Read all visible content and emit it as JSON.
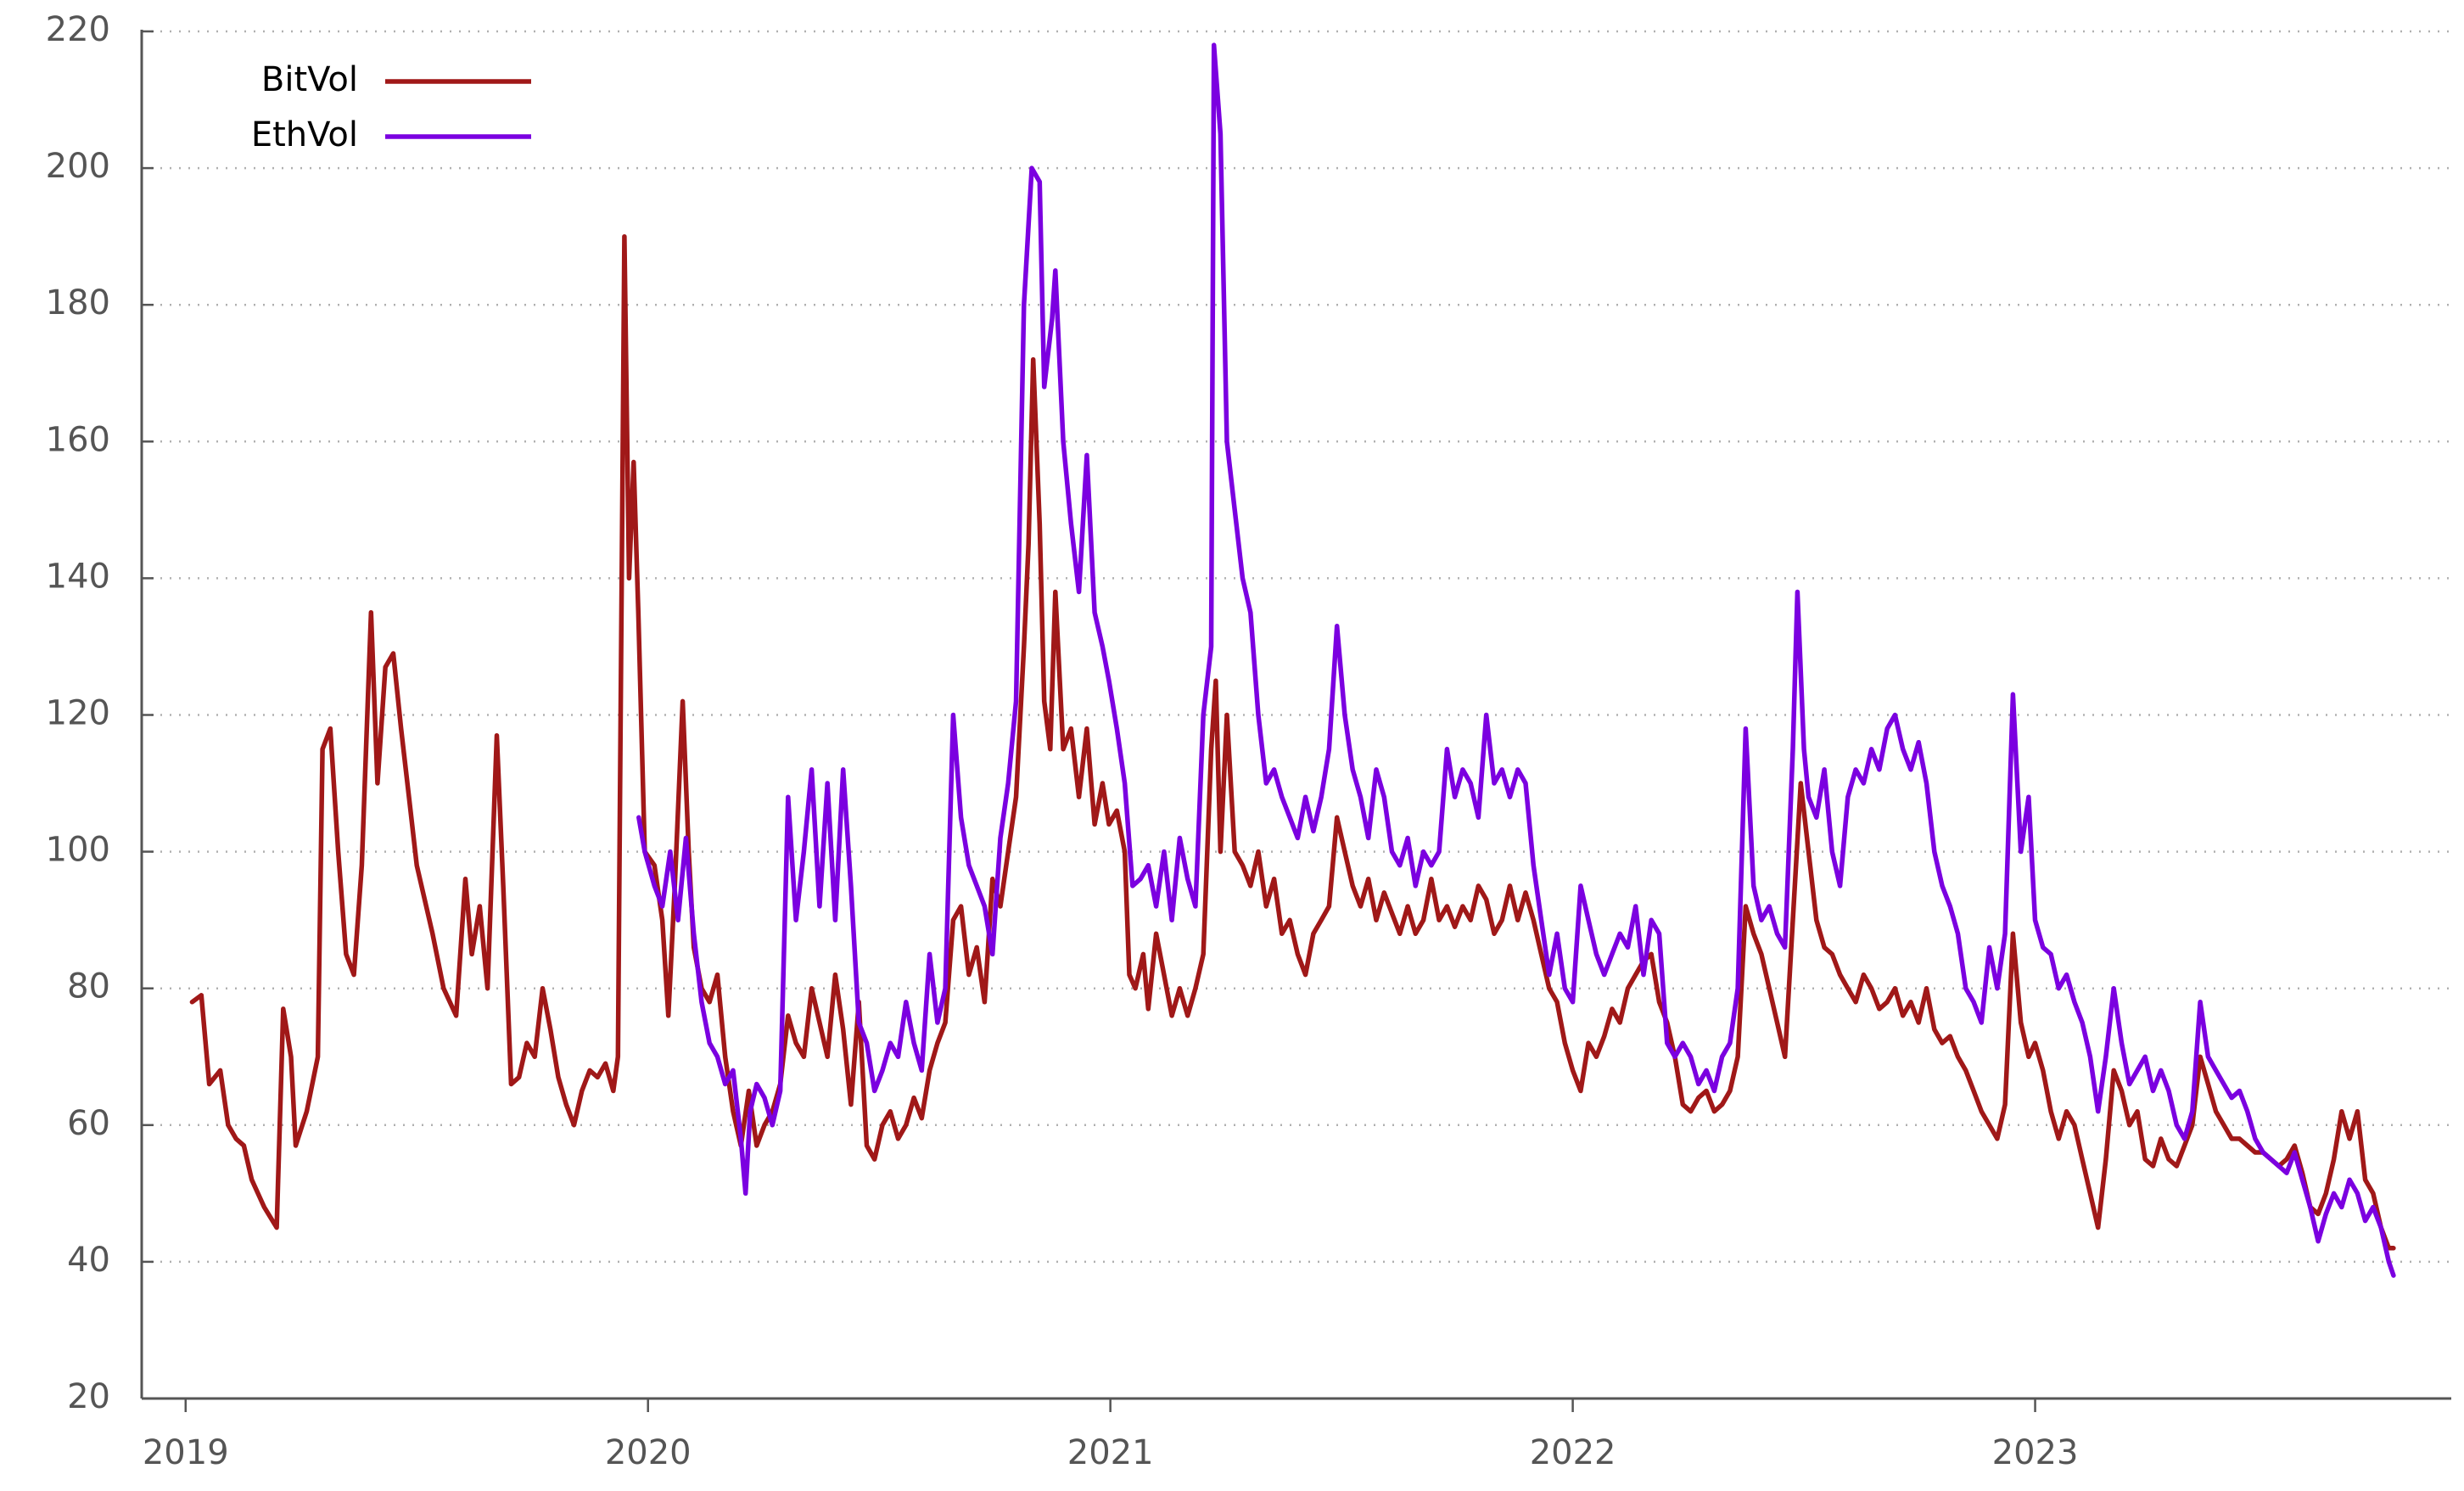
{
  "chart_data": {
    "type": "line",
    "legend": "upper left",
    "grid": true,
    "xlim": [
      2018.905,
      2023.9
    ],
    "xticks": [
      2019,
      2020,
      2021,
      2022,
      2023
    ],
    "ylim": [
      20,
      220
    ],
    "yticks": [
      20,
      40,
      60,
      80,
      100,
      120,
      140,
      160,
      180,
      200,
      220
    ],
    "series": [
      {
        "name": "BitVol",
        "color": "#a01818",
        "x": [
          2019.014,
          2019.034,
          2019.051,
          2019.075,
          2019.092,
          2019.109,
          2019.126,
          2019.143,
          2019.17,
          2019.197,
          2019.211,
          2019.228,
          2019.238,
          2019.262,
          2019.286,
          2019.296,
          2019.313,
          2019.33,
          2019.347,
          2019.364,
          2019.381,
          2019.401,
          2019.415,
          2019.432,
          2019.449,
          2019.466,
          2019.483,
          2019.5,
          2019.517,
          2019.534,
          2019.558,
          2019.585,
          2019.605,
          2019.619,
          2019.636,
          2019.653,
          2019.673,
          2019.687,
          2019.704,
          2019.721,
          2019.738,
          2019.755,
          2019.772,
          2019.789,
          2019.806,
          2019.823,
          2019.84,
          2019.857,
          2019.874,
          2019.891,
          2019.908,
          2019.925,
          2019.935,
          2019.949,
          2019.959,
          2019.969,
          2019.979,
          2019.993,
          2020.014,
          2020.031,
          2020.044,
          2020.058,
          2020.075,
          2020.088,
          2020.099,
          2020.116,
          2020.133,
          2020.15,
          2020.167,
          2020.184,
          2020.201,
          2020.218,
          2020.235,
          2020.252,
          2020.269,
          2020.286,
          2020.303,
          2020.32,
          2020.337,
          2020.354,
          2020.371,
          2020.388,
          2020.405,
          2020.422,
          2020.439,
          2020.456,
          2020.473,
          2020.49,
          2020.507,
          2020.524,
          2020.541,
          2020.558,
          2020.575,
          2020.592,
          2020.609,
          2020.626,
          2020.643,
          2020.66,
          2020.677,
          2020.694,
          2020.711,
          2020.728,
          2020.745,
          2020.762,
          2020.779,
          2020.796,
          2020.813,
          2020.823,
          2020.833,
          2020.847,
          2020.857,
          2020.87,
          2020.881,
          2020.898,
          2020.915,
          2020.932,
          2020.949,
          2020.966,
          2020.983,
          2020.997,
          2021.014,
          2021.031,
          2021.041,
          2021.054,
          2021.071,
          2021.082,
          2021.099,
          2021.116,
          2021.133,
          2021.15,
          2021.167,
          2021.184,
          2021.201,
          2021.218,
          2021.228,
          2021.238,
          2021.252,
          2021.269,
          2021.286,
          2021.303,
          2021.32,
          2021.337,
          2021.354,
          2021.371,
          2021.388,
          2021.405,
          2021.422,
          2021.439,
          2021.456,
          2021.473,
          2021.49,
          2021.507,
          2021.524,
          2021.541,
          2021.558,
          2021.575,
          2021.592,
          2021.609,
          2021.626,
          2021.643,
          2021.66,
          2021.677,
          2021.694,
          2021.711,
          2021.728,
          2021.745,
          2021.762,
          2021.779,
          2021.796,
          2021.813,
          2021.83,
          2021.847,
          2021.864,
          2021.881,
          2021.898,
          2021.915,
          2021.932,
          2021.949,
          2021.966,
          2021.983,
          2022.0,
          2022.017,
          2022.034,
          2022.051,
          2022.068,
          2022.085,
          2022.102,
          2022.119,
          2022.136,
          2022.153,
          2022.17,
          2022.187,
          2022.204,
          2022.221,
          2022.238,
          2022.255,
          2022.272,
          2022.289,
          2022.306,
          2022.323,
          2022.34,
          2022.357,
          2022.374,
          2022.391,
          2022.408,
          2022.425,
          2022.442,
          2022.459,
          2022.476,
          2022.493,
          2022.51,
          2022.527,
          2022.544,
          2022.561,
          2022.578,
          2022.595,
          2022.612,
          2022.629,
          2022.646,
          2022.663,
          2022.68,
          2022.697,
          2022.714,
          2022.731,
          2022.748,
          2022.765,
          2022.782,
          2022.799,
          2022.816,
          2022.833,
          2022.85,
          2022.867,
          2022.884,
          2022.901,
          2022.918,
          2022.935,
          2022.952,
          2022.969,
          2022.986,
          2023.0,
          2023.017,
          2023.034,
          2023.051,
          2023.068,
          2023.085,
          2023.102,
          2023.119,
          2023.136,
          2023.153,
          2023.17,
          2023.187,
          2023.204,
          2023.221,
          2023.238,
          2023.255,
          2023.272,
          2023.289,
          2023.306,
          2023.323,
          2023.34,
          2023.357,
          2023.374,
          2023.391,
          2023.408,
          2023.425,
          2023.442,
          2023.459,
          2023.476,
          2023.493,
          2023.51,
          2023.527,
          2023.544,
          2023.561,
          2023.578,
          2023.595,
          2023.612,
          2023.629,
          2023.646,
          2023.663,
          2023.68,
          2023.697,
          2023.714,
          2023.731,
          2023.748,
          2023.765,
          2023.775
        ],
        "values": [
          78,
          79,
          66,
          68,
          60,
          58,
          57,
          52,
          48,
          45,
          77,
          70,
          57,
          62,
          70,
          115,
          118,
          100,
          85,
          82,
          98,
          135,
          110,
          127,
          129,
          118,
          108,
          98,
          93,
          88,
          80,
          76,
          96,
          85,
          92,
          80,
          117,
          95,
          66,
          67,
          72,
          70,
          80,
          74,
          67,
          63,
          60,
          65,
          68,
          67,
          69,
          65,
          70,
          190,
          140,
          157,
          135,
          100,
          98,
          90,
          76,
          95,
          122,
          100,
          86,
          80,
          78,
          82,
          70,
          62,
          57,
          65,
          57,
          60,
          62,
          66,
          76,
          72,
          70,
          80,
          75,
          70,
          82,
          74,
          63,
          78,
          57,
          55,
          60,
          62,
          58,
          60,
          64,
          61,
          68,
          72,
          75,
          90,
          92,
          82,
          86,
          78,
          96,
          92,
          100,
          108,
          130,
          145,
          172,
          148,
          122,
          115,
          138,
          115,
          118,
          108,
          118,
          104,
          110,
          104,
          106,
          100,
          82,
          80,
          85,
          77,
          88,
          82,
          76,
          80,
          76,
          80,
          85,
          115,
          125,
          100,
          120,
          100,
          98,
          95,
          100,
          92,
          96,
          88,
          90,
          85,
          82,
          88,
          90,
          92,
          105,
          100,
          95,
          92,
          96,
          90,
          94,
          91,
          88,
          92,
          88,
          90,
          96,
          90,
          92,
          89,
          92,
          90,
          95,
          93,
          88,
          90,
          95,
          90,
          94,
          90,
          85,
          80,
          78,
          72,
          68,
          65,
          72,
          70,
          73,
          77,
          75,
          80,
          82,
          84,
          85,
          78,
          75,
          70,
          63,
          62,
          64,
          65,
          62,
          63,
          65,
          70,
          92,
          88,
          85,
          80,
          75,
          70,
          90,
          110,
          100,
          90,
          86,
          85,
          82,
          80,
          78,
          82,
          80,
          77,
          78,
          80,
          76,
          78,
          75,
          80,
          74,
          72,
          73,
          70,
          68,
          65,
          62,
          60,
          58,
          63,
          88,
          75,
          70,
          72,
          68,
          62,
          58,
          62,
          60,
          55,
          50,
          45,
          55,
          68,
          65,
          60,
          62,
          55,
          54,
          58,
          55,
          54,
          57,
          60,
          70,
          66,
          62,
          60,
          58,
          58,
          57,
          56,
          56,
          55,
          54,
          55,
          57,
          53,
          48,
          47,
          50,
          55,
          62,
          58,
          62,
          52,
          50,
          45,
          42,
          42
        ]
      },
      {
        "name": "EthVol",
        "color": "#7b00e0",
        "x": [
          2019.98,
          2019.993,
          2020.014,
          2020.031,
          2020.048,
          2020.065,
          2020.082,
          2020.099,
          2020.116,
          2020.133,
          2020.15,
          2020.167,
          2020.184,
          2020.201,
          2020.211,
          2020.221,
          2020.235,
          2020.252,
          2020.269,
          2020.286,
          2020.303,
          2020.32,
          2020.337,
          2020.354,
          2020.371,
          2020.388,
          2020.405,
          2020.422,
          2020.439,
          2020.456,
          2020.473,
          2020.49,
          2020.507,
          2020.524,
          2020.541,
          2020.558,
          2020.575,
          2020.592,
          2020.609,
          2020.626,
          2020.643,
          2020.66,
          2020.677,
          2020.694,
          2020.711,
          2020.728,
          2020.745,
          2020.762,
          2020.779,
          2020.796,
          2020.813,
          2020.83,
          2020.847,
          2020.857,
          2020.874,
          2020.881,
          2020.898,
          2020.915,
          2020.932,
          2020.949,
          2020.966,
          2020.983,
          2020.997,
          2021.014,
          2021.031,
          2021.048,
          2021.065,
          2021.082,
          2021.099,
          2021.116,
          2021.133,
          2021.15,
          2021.167,
          2021.184,
          2021.201,
          2021.218,
          2021.224,
          2021.238,
          2021.252,
          2021.269,
          2021.286,
          2021.303,
          2021.32,
          2021.337,
          2021.354,
          2021.371,
          2021.388,
          2021.405,
          2021.422,
          2021.439,
          2021.456,
          2021.473,
          2021.49,
          2021.507,
          2021.524,
          2021.541,
          2021.558,
          2021.575,
          2021.592,
          2021.609,
          2021.626,
          2021.643,
          2021.66,
          2021.677,
          2021.694,
          2021.711,
          2021.728,
          2021.745,
          2021.762,
          2021.779,
          2021.796,
          2021.813,
          2021.83,
          2021.847,
          2021.864,
          2021.881,
          2021.898,
          2021.915,
          2021.932,
          2021.949,
          2021.966,
          2021.983,
          2022.0,
          2022.017,
          2022.034,
          2022.051,
          2022.068,
          2022.085,
          2022.102,
          2022.119,
          2022.136,
          2022.153,
          2022.17,
          2022.187,
          2022.204,
          2022.221,
          2022.238,
          2022.255,
          2022.272,
          2022.289,
          2022.306,
          2022.323,
          2022.34,
          2022.357,
          2022.374,
          2022.391,
          2022.408,
          2022.425,
          2022.442,
          2022.459,
          2022.476,
          2022.486,
          2022.5,
          2022.51,
          2022.527,
          2022.544,
          2022.561,
          2022.578,
          2022.595,
          2022.612,
          2022.629,
          2022.646,
          2022.663,
          2022.68,
          2022.697,
          2022.714,
          2022.731,
          2022.748,
          2022.765,
          2022.782,
          2022.799,
          2022.816,
          2022.833,
          2022.85,
          2022.867,
          2022.884,
          2022.901,
          2022.918,
          2022.935,
          2022.952,
          2022.969,
          2022.986,
          2023.0,
          2023.017,
          2023.034,
          2023.051,
          2023.068,
          2023.085,
          2023.102,
          2023.119,
          2023.136,
          2023.153,
          2023.17,
          2023.187,
          2023.204,
          2023.221,
          2023.238,
          2023.255,
          2023.272,
          2023.289,
          2023.306,
          2023.323,
          2023.34,
          2023.357,
          2023.374,
          2023.391,
          2023.408,
          2023.425,
          2023.442,
          2023.459,
          2023.476,
          2023.493,
          2023.51,
          2023.527,
          2023.544,
          2023.561,
          2023.578,
          2023.595,
          2023.612,
          2023.629,
          2023.646,
          2023.663,
          2023.68,
          2023.697,
          2023.714,
          2023.731,
          2023.748,
          2023.765,
          2023.775
        ],
        "values": [
          105,
          100,
          95,
          92,
          100,
          90,
          102,
          88,
          78,
          72,
          70,
          66,
          68,
          58,
          50,
          62,
          66,
          64,
          60,
          65,
          108,
          90,
          100,
          112,
          92,
          110,
          90,
          112,
          95,
          75,
          72,
          65,
          68,
          72,
          70,
          78,
          72,
          68,
          85,
          75,
          80,
          120,
          105,
          98,
          95,
          92,
          85,
          102,
          110,
          122,
          180,
          200,
          198,
          168,
          178,
          185,
          160,
          148,
          138,
          158,
          135,
          130,
          125,
          118,
          110,
          95,
          96,
          98,
          92,
          100,
          90,
          102,
          96,
          92,
          120,
          130,
          218,
          205,
          160,
          150,
          140,
          135,
          120,
          110,
          112,
          108,
          105,
          102,
          108,
          103,
          108,
          115,
          133,
          120,
          112,
          108,
          102,
          112,
          108,
          100,
          98,
          102,
          95,
          100,
          98,
          100,
          115,
          108,
          112,
          110,
          105,
          120,
          110,
          112,
          108,
          112,
          110,
          98,
          90,
          82,
          88,
          80,
          78,
          95,
          90,
          85,
          82,
          85,
          88,
          86,
          92,
          82,
          90,
          88,
          72,
          70,
          72,
          70,
          66,
          68,
          65,
          70,
          72,
          80,
          118,
          95,
          90,
          92,
          88,
          86,
          115,
          138,
          115,
          108,
          105,
          112,
          100,
          95,
          108,
          112,
          110,
          115,
          112,
          118,
          120,
          115,
          112,
          116,
          110,
          100,
          95,
          92,
          88,
          80,
          78,
          75,
          86,
          80,
          88,
          123,
          100,
          108,
          90,
          86,
          85,
          80,
          82,
          78,
          75,
          70,
          62,
          70,
          80,
          72,
          66,
          68,
          70,
          65,
          68,
          65,
          60,
          58,
          62,
          78,
          70,
          68,
          66,
          64,
          65,
          62,
          58,
          56,
          55,
          54,
          53,
          56,
          52,
          48,
          43,
          47,
          50,
          48,
          52,
          50,
          46,
          48,
          45,
          40,
          38
        ]
      }
    ]
  }
}
